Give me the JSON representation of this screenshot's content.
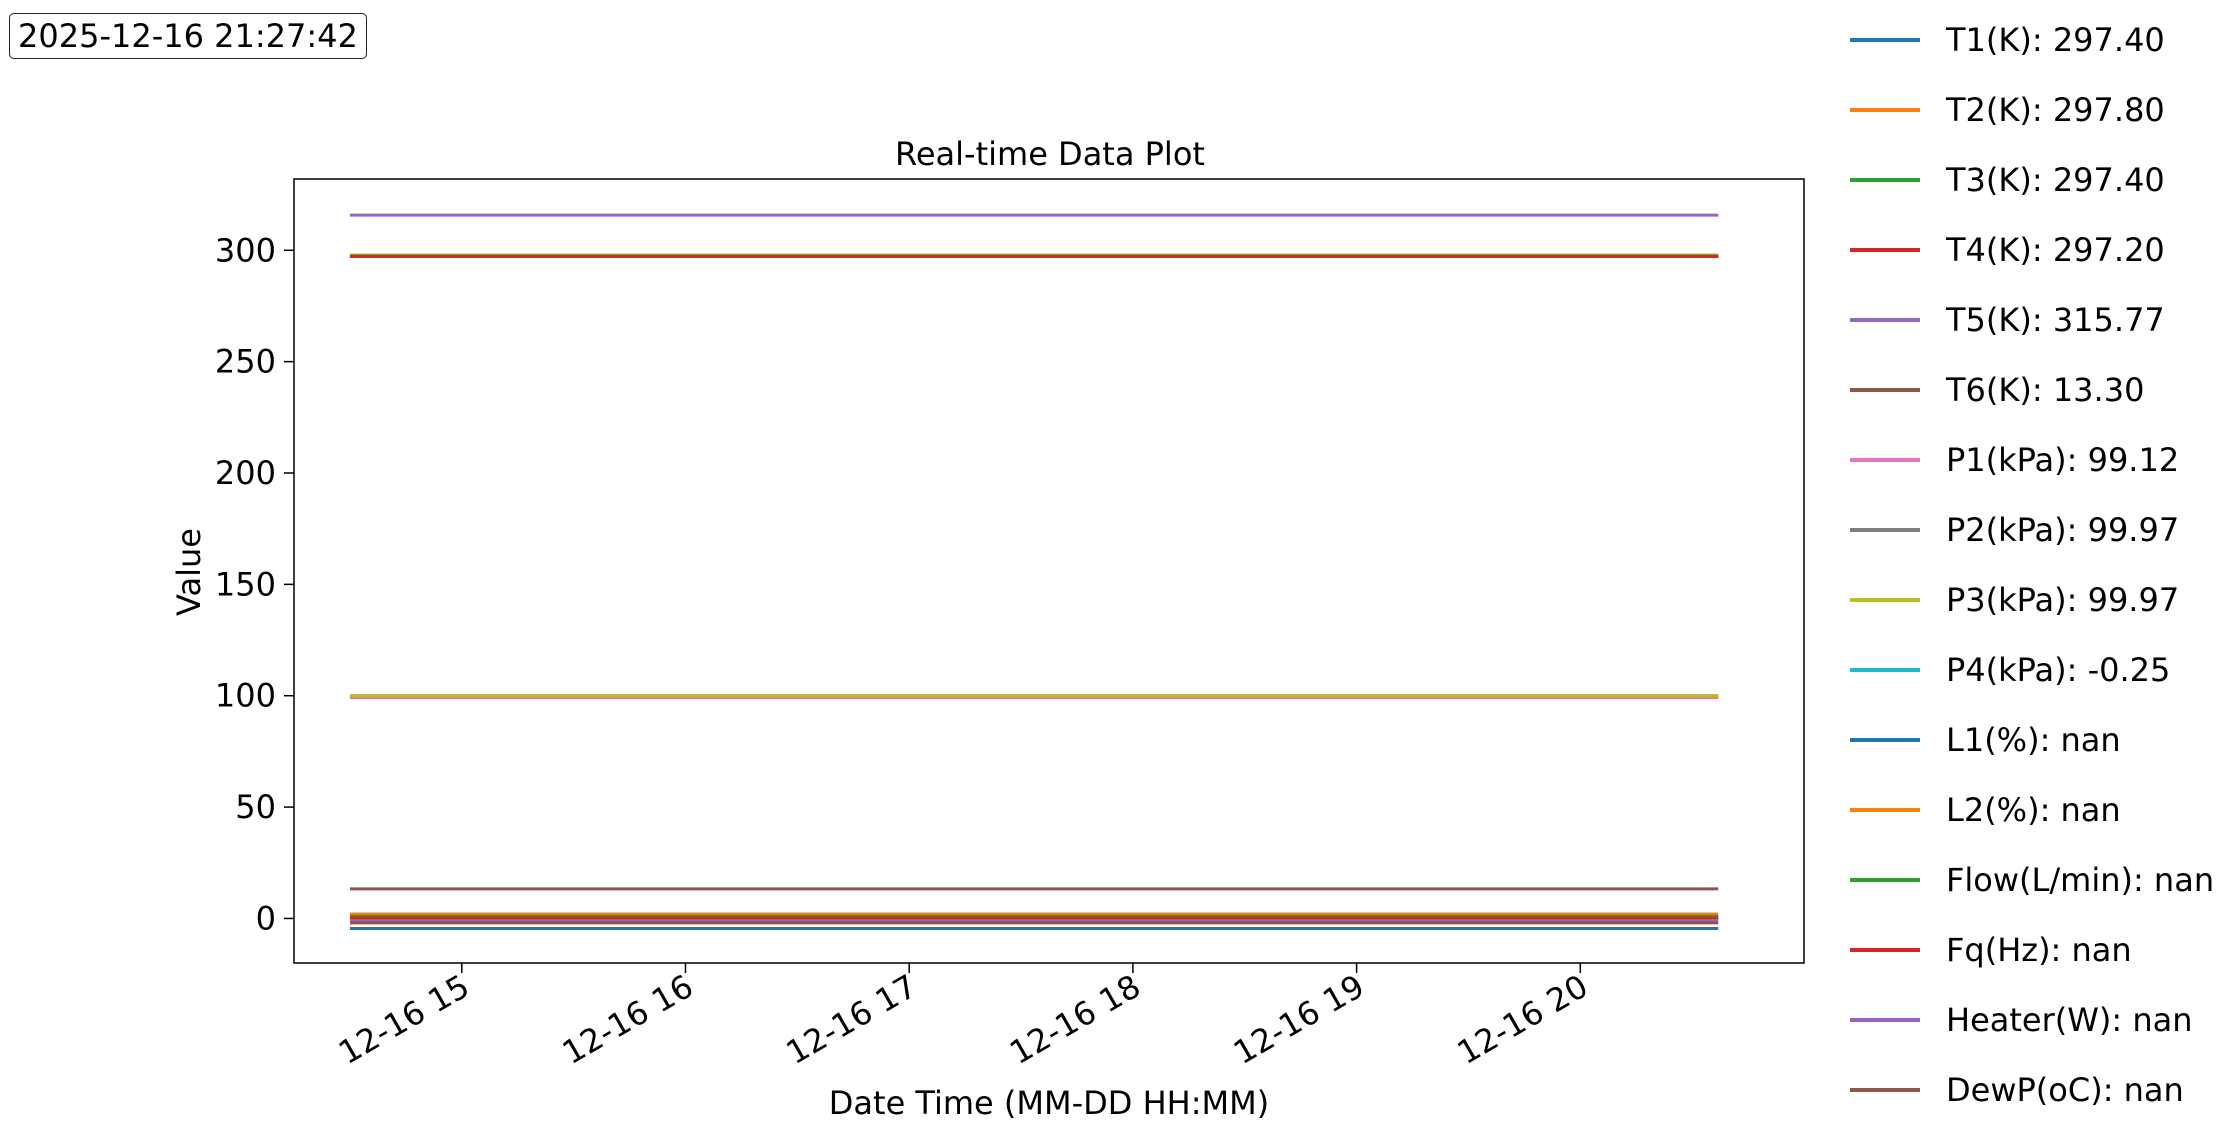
{
  "timestamp": "2025-12-16 21:27:42",
  "legend_placement": "right, outside plot",
  "chart_data": {
    "type": "line",
    "title": "Real-time Data Plot",
    "xlabel": "Date Time (MM-DD HH:MM)",
    "ylabel": "Value",
    "xlim": [
      "2025-12-16 14:15",
      "2025-12-16 21:00"
    ],
    "ylim": [
      -20,
      332
    ],
    "x_range": [
      "2025-12-16 14:30",
      "2025-12-16 20:37"
    ],
    "x_ticks": [
      "12-16 15",
      "12-16 16",
      "12-16 17",
      "12-16 18",
      "12-16 19",
      "12-16 20"
    ],
    "y_ticks": [
      0,
      50,
      100,
      150,
      200,
      250,
      300
    ],
    "grid": false,
    "series": [
      {
        "name": "T1(K)",
        "label": "T1(K): 297.40",
        "color": "#1f77b4",
        "y": 297.4
      },
      {
        "name": "T2(K)",
        "label": "T2(K): 297.80",
        "color": "#ff7f0e",
        "y": 297.8
      },
      {
        "name": "T3(K)",
        "label": "T3(K): 297.40",
        "color": "#2ca02c",
        "y": 297.4
      },
      {
        "name": "T4(K)",
        "label": "T4(K): 297.20",
        "color": "#d62728",
        "y": 297.2
      },
      {
        "name": "T5(K)",
        "label": "T5(K): 315.77",
        "color": "#9467bd",
        "y": 315.77
      },
      {
        "name": "T6(K)",
        "label": "T6(K): 13.30",
        "color": "#8c564b",
        "y": 13.3
      },
      {
        "name": "P1(kPa)",
        "label": "P1(kPa): 99.12",
        "color": "#e377c2",
        "y": 99.12
      },
      {
        "name": "P2(kPa)",
        "label": "P2(kPa): 99.97",
        "color": "#7f7f7f",
        "y": 99.97
      },
      {
        "name": "P3(kPa)",
        "label": "P3(kPa): 99.97",
        "color": "#bcbd22",
        "y": 99.97
      },
      {
        "name": "P4(kPa)",
        "label": "P4(kPa): -0.25",
        "color": "#17becf",
        "y": -0.25
      },
      {
        "name": "L1(%)",
        "label": "L1(%): nan",
        "color": "#1f77b4",
        "y": -4.5
      },
      {
        "name": "L2(%)",
        "label": "L2(%): nan",
        "color": "#ff7f0e",
        "y": 2
      },
      {
        "name": "Flow(L/min)",
        "label": "Flow(L/min): nan",
        "color": "#2ca02c",
        "y": 1
      },
      {
        "name": "Fq(Hz)",
        "label": "Fq(Hz): nan",
        "color": "#d62728",
        "y": 0.2
      },
      {
        "name": "Heater(W)",
        "label": "Heater(W): nan",
        "color": "#9467bd",
        "y": -1
      },
      {
        "name": "DewP(oC)",
        "label": "DewP(oC): nan",
        "color": "#8c564b",
        "y": -2
      }
    ]
  }
}
